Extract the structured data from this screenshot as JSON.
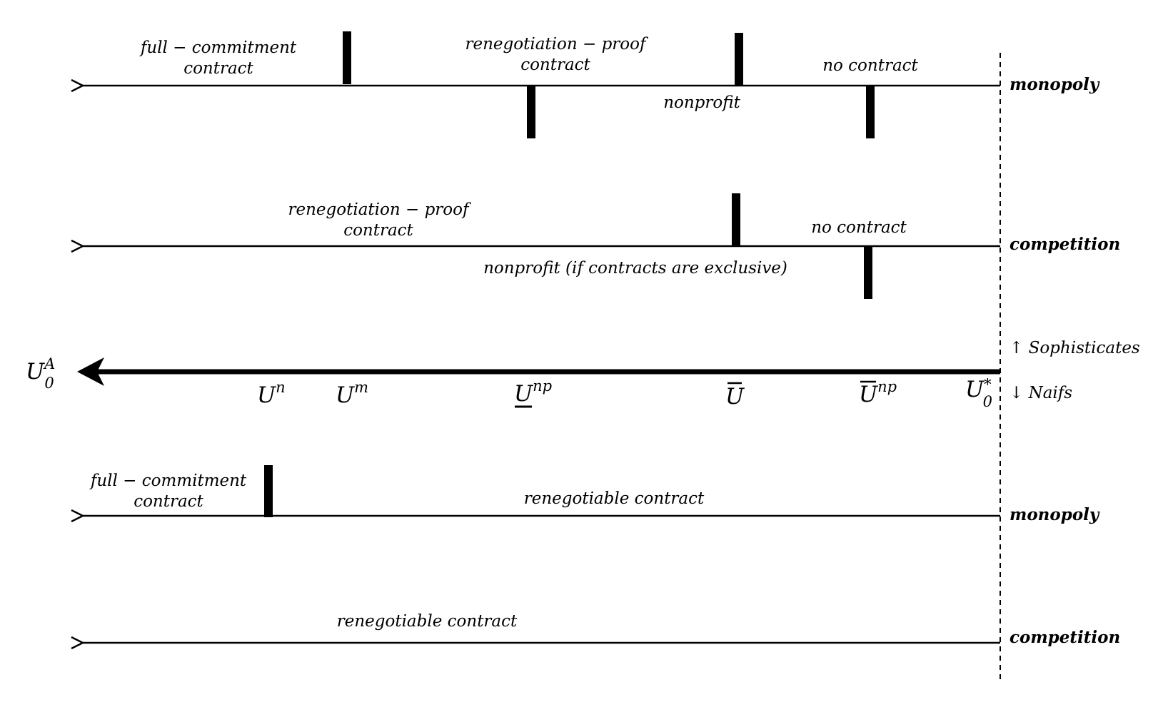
{
  "regime_lines": [
    {
      "id": "sophisticates-monopoly",
      "market": "monopoly",
      "regions_above": [
        {
          "line1": "full − commitment",
          "line2": "contract"
        },
        {
          "line1": "renegotiation − proof",
          "line2": "contract"
        },
        {
          "line1": "no contract",
          "line2": ""
        }
      ],
      "regions_below": [
        {
          "text": "nonprofit"
        }
      ]
    },
    {
      "id": "sophisticates-competition",
      "market": "competition",
      "regions_above": [
        {
          "line1": "renegotiation − proof",
          "line2": "contract"
        },
        {
          "line1": "no contract",
          "line2": ""
        }
      ],
      "regions_below": [
        {
          "text": "nonprofit (if contracts are exclusive)"
        }
      ]
    },
    {
      "id": "naifs-monopoly",
      "market": "monopoly",
      "regions_above": [
        {
          "line1": "full − commitment",
          "line2": "contract"
        },
        {
          "line1": "renegotiable contract",
          "line2": ""
        }
      ],
      "regions_below": []
    },
    {
      "id": "naifs-competition",
      "market": "competition",
      "regions_above": [
        {
          "line1": "renegotiable contract",
          "line2": ""
        }
      ],
      "regions_below": []
    }
  ],
  "axis": {
    "variable": {
      "base": "U",
      "sup": "A",
      "sub": "0"
    },
    "thresholds": [
      {
        "base": "U",
        "sup": "n",
        "sub": "",
        "mark": ""
      },
      {
        "base": "U",
        "sup": "m",
        "sub": "",
        "mark": ""
      },
      {
        "base": "U",
        "sup": "np",
        "sub": "",
        "mark": "underline"
      },
      {
        "base": "U",
        "sup": "",
        "sub": "",
        "mark": "overline"
      },
      {
        "base": "U",
        "sup": "np",
        "sub": "",
        "mark": "overline"
      },
      {
        "base": "U",
        "sup": "*",
        "sub": "0",
        "mark": ""
      }
    ]
  },
  "groups": {
    "upper": "↑ Sophisticates",
    "lower": "↓ Naifs"
  }
}
